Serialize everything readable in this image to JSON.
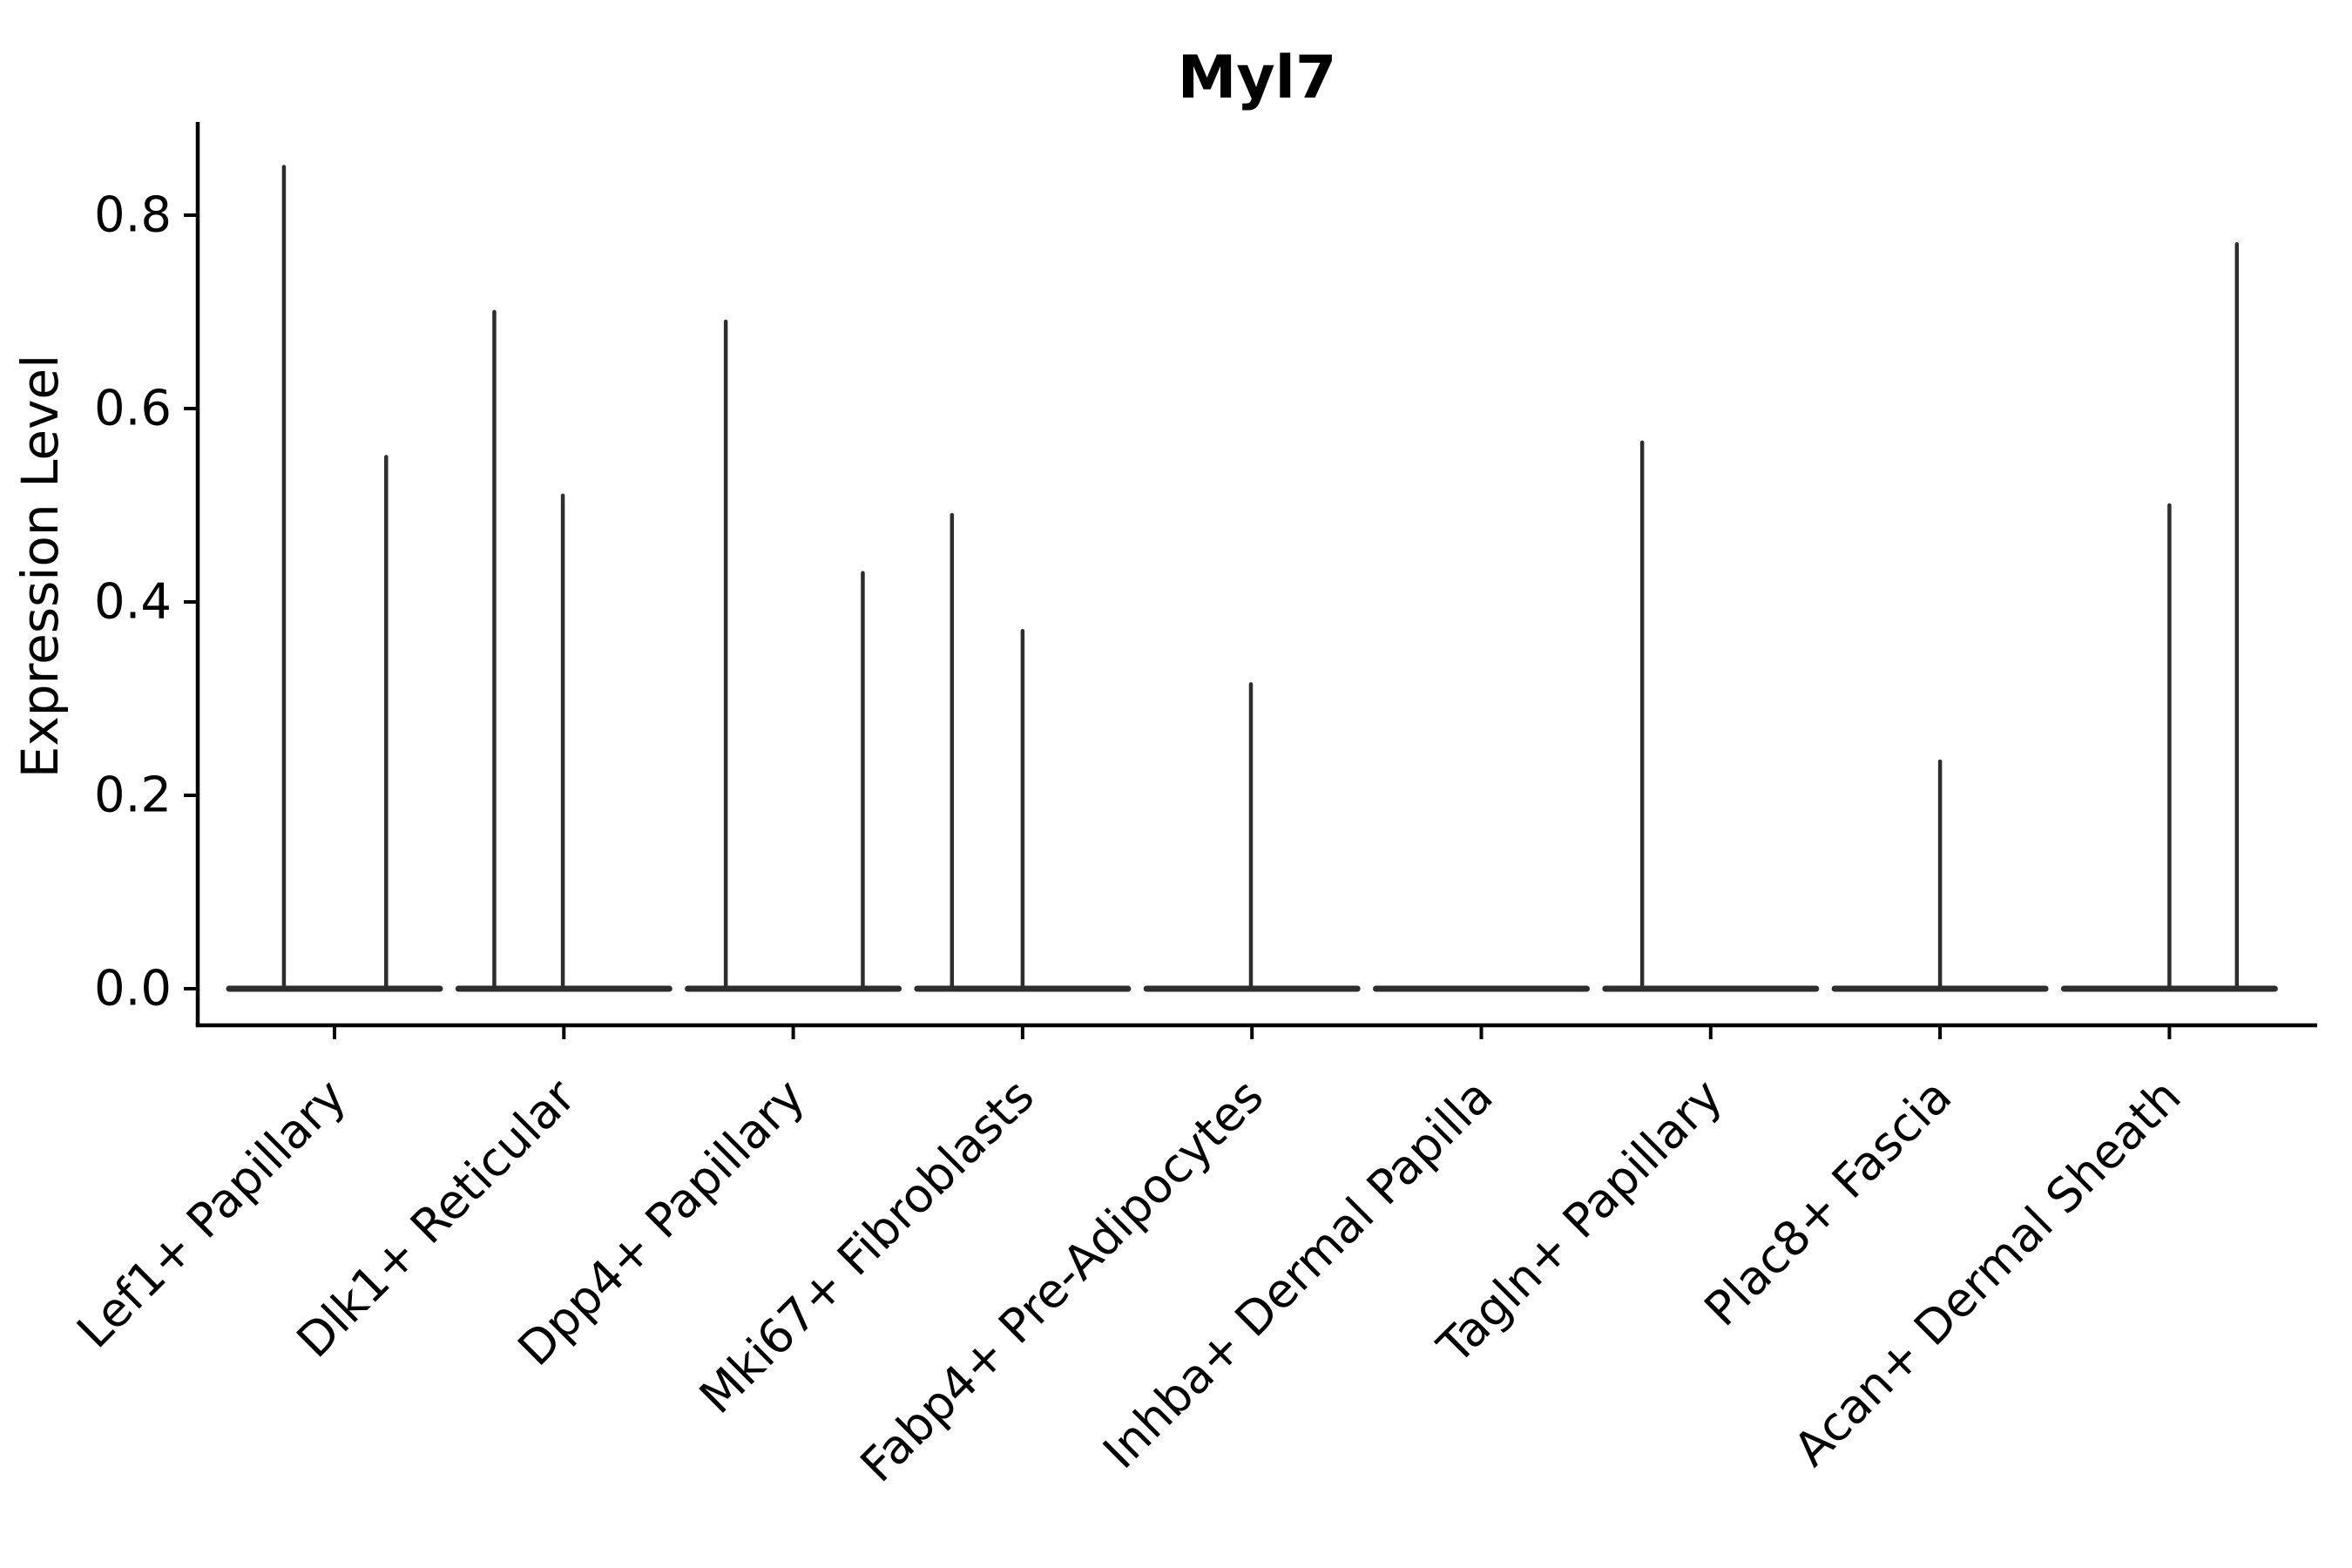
{
  "chart_data": {
    "type": "violin",
    "title": "Myl7",
    "xlabel": "",
    "ylabel": "Expression Level",
    "grid": false,
    "legend": "none",
    "ylim": [
      -0.04,
      0.9
    ],
    "yticks": [
      {
        "label": "0.0",
        "value": 0.0
      },
      {
        "label": "0.2",
        "value": 0.2
      },
      {
        "label": "0.4",
        "value": 0.4
      },
      {
        "label": "0.6",
        "value": 0.6
      },
      {
        "label": "0.8",
        "value": 0.8
      }
    ],
    "categories": [
      "Lef1+ Papillary",
      "Dlk1+ Reticular",
      "Dpp4+ Papillary",
      "Mki67+ Fibroblasts",
      "Fabp4+ Pre-Adipocytes",
      "Inhba+ Dermal Papilla",
      "Tagln+ Papillary",
      "Plac8+ Fascia",
      "Acan+ Dermal Sheath"
    ],
    "violins": [
      {
        "category": "Lef1+ Papillary",
        "spikes": [
          {
            "pos": 0.26,
            "max": 0.85
          },
          {
            "pos": 0.745,
            "max": 0.55
          }
        ]
      },
      {
        "category": "Dlk1+ Reticular",
        "spikes": [
          {
            "pos": 0.17,
            "max": 0.7
          },
          {
            "pos": 0.495,
            "max": 0.51
          }
        ]
      },
      {
        "category": "Dpp4+ Papillary",
        "spikes": [
          {
            "pos": 0.18,
            "max": 0.69
          },
          {
            "pos": 0.83,
            "max": 0.43
          }
        ]
      },
      {
        "category": "Mki67+ Fibroblasts",
        "spikes": [
          {
            "pos": 0.165,
            "max": 0.49
          },
          {
            "pos": 0.5,
            "max": 0.37
          }
        ]
      },
      {
        "category": "Fabp4+ Pre-Adipocytes",
        "spikes": [
          {
            "pos": 0.495,
            "max": 0.315
          }
        ]
      },
      {
        "category": "Inhba+ Dermal Papilla",
        "spikes": []
      },
      {
        "category": "Tagln+ Papillary",
        "spikes": [
          {
            "pos": 0.175,
            "max": 0.565
          }
        ]
      },
      {
        "category": "Plac8+ Fascia",
        "spikes": [
          {
            "pos": 0.5,
            "max": 0.235
          }
        ]
      },
      {
        "category": "Acan+ Dermal Sheath",
        "spikes": [
          {
            "pos": 0.5,
            "max": 0.5
          },
          {
            "pos": 0.82,
            "max": 0.77
          }
        ]
      }
    ],
    "colors": {
      "violin_line": "#2d2d2d",
      "axis": "#000000",
      "text": "#000000",
      "background": "#ffffff"
    }
  }
}
